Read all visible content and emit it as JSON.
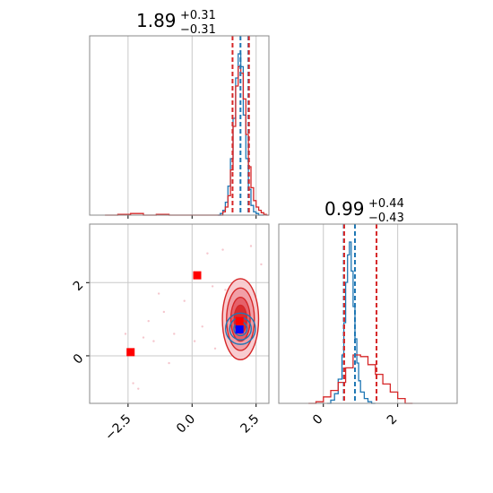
{
  "chart_data": [
    {
      "type": "histogram",
      "panel": "marginal-x",
      "title_value": "1.89",
      "title_plus": "+0.31",
      "title_minus": "−0.31",
      "xlim": [
        -4.0,
        3.0
      ],
      "grid": true,
      "series": [
        {
          "color": "#1f77b4",
          "style": "step",
          "bins_x": [
            1.0,
            1.1,
            1.2,
            1.3,
            1.4,
            1.5,
            1.6,
            1.7,
            1.8,
            1.9,
            2.0,
            2.1,
            2.2,
            2.3,
            2.4,
            2.5,
            2.6,
            2.7,
            2.8
          ],
          "heights": [
            0.0,
            0.01,
            0.03,
            0.08,
            0.18,
            0.35,
            0.6,
            0.85,
            1.0,
            0.92,
            0.62,
            0.35,
            0.16,
            0.06,
            0.02,
            0.01,
            0.0,
            0.0
          ]
        },
        {
          "color": "#d62728",
          "style": "step",
          "bins_x": [
            -3.4,
            -2.9,
            -2.4,
            -1.9,
            -1.4,
            -0.9,
            -0.4,
            0.1,
            0.6,
            1.1,
            1.2,
            1.3,
            1.4,
            1.5,
            1.6,
            1.7,
            1.8,
            1.9,
            2.0,
            2.1,
            2.2,
            2.3,
            2.4,
            2.5,
            2.6,
            2.7,
            2.8,
            2.9,
            3.0
          ],
          "heights": [
            0.0,
            0.005,
            0.01,
            0.0,
            0.005,
            0.0,
            0.0,
            0.0,
            0.0,
            0.0,
            0.02,
            0.05,
            0.12,
            0.28,
            0.55,
            0.8,
            0.92,
            0.88,
            0.72,
            0.5,
            0.3,
            0.17,
            0.09,
            0.05,
            0.03,
            0.015,
            0.005,
            0.0
          ]
        }
      ],
      "quantile_lines": [
        {
          "x": 1.58,
          "color": "#d62728"
        },
        {
          "x": 1.89,
          "color": "#1f77b4"
        },
        {
          "x": 2.2,
          "color": "#1f77b4"
        },
        {
          "x": 2.22,
          "color": "#d62728"
        }
      ]
    },
    {
      "type": "histogram",
      "panel": "marginal-y",
      "title_value": "0.99",
      "title_plus": "+0.44",
      "title_minus": "−0.43",
      "xlim": [
        -1.2,
        3.6
      ],
      "xticks": [
        0,
        2
      ],
      "xtick_labels": [
        "0",
        "2"
      ],
      "grid": true,
      "series": [
        {
          "color": "#1f77b4",
          "style": "step",
          "bins_x": [
            0.1,
            0.2,
            0.3,
            0.4,
            0.5,
            0.55,
            0.6,
            0.65,
            0.7,
            0.75,
            0.8,
            0.85,
            0.9,
            0.95,
            1.0,
            1.1,
            1.2,
            1.3,
            1.4
          ],
          "heights": [
            0.0,
            0.02,
            0.06,
            0.15,
            0.3,
            0.5,
            0.75,
            0.92,
            1.0,
            0.82,
            0.6,
            0.4,
            0.25,
            0.14,
            0.07,
            0.03,
            0.01,
            0.0
          ]
        },
        {
          "color": "#d62728",
          "style": "step",
          "bins_x": [
            -0.4,
            -0.2,
            0.0,
            0.2,
            0.4,
            0.6,
            0.8,
            1.0,
            1.2,
            1.4,
            1.6,
            1.8,
            2.0,
            2.2,
            2.4
          ],
          "heights": [
            0.0,
            0.01,
            0.04,
            0.08,
            0.13,
            0.22,
            0.3,
            0.29,
            0.24,
            0.18,
            0.12,
            0.07,
            0.03,
            0.0
          ]
        }
      ],
      "quantile_lines": [
        {
          "x": 0.55,
          "color": "#1f77b4"
        },
        {
          "x": 0.56,
          "color": "#d62728"
        },
        {
          "x": 0.85,
          "color": "#1f77b4"
        },
        {
          "x": 1.43,
          "color": "#d62728"
        }
      ]
    },
    {
      "type": "scatter",
      "panel": "joint",
      "xlim": [
        -4.0,
        3.0
      ],
      "ylim": [
        -1.3,
        3.6
      ],
      "xticks": [
        -2.5,
        0.0,
        2.5
      ],
      "xtick_labels": [
        "−2.5",
        "0.0",
        "2.5"
      ],
      "yticks": [
        0,
        2
      ],
      "ytick_labels": [
        "0",
        "2"
      ],
      "grid": true,
      "markers": [
        {
          "x": -2.4,
          "y": 0.1,
          "color": "#ff0000",
          "shape": "square"
        },
        {
          "x": 0.2,
          "y": 2.2,
          "color": "#ff0000",
          "shape": "square"
        },
        {
          "x": 1.85,
          "y": 0.95,
          "color": "#ff0000",
          "shape": "square"
        },
        {
          "x": 1.85,
          "y": 0.72,
          "color": "#0000ff",
          "shape": "square"
        }
      ],
      "red_contours": {
        "center": [
          1.89,
          1.0
        ],
        "sigma": [
          0.35,
          0.55
        ],
        "levels": [
          1.3,
          1.0,
          0.7,
          0.45
        ],
        "color": "#d62728"
      },
      "blue_contours": {
        "center": [
          1.89,
          0.74
        ],
        "sigma": [
          0.3,
          0.22
        ],
        "levels": [
          1.25,
          0.9,
          0.55
        ],
        "color": "#1f77b4"
      },
      "scatter_points": [
        [
          -2.3,
          -0.75
        ],
        [
          -2.1,
          -0.9
        ],
        [
          -1.9,
          0.5
        ],
        [
          -1.7,
          0.95
        ],
        [
          -1.5,
          0.4
        ],
        [
          -1.1,
          1.2
        ],
        [
          -0.7,
          0.6
        ],
        [
          -0.3,
          1.5
        ],
        [
          0.1,
          0.4
        ],
        [
          0.4,
          0.8
        ],
        [
          0.6,
          2.8
        ],
        [
          0.8,
          1.9
        ],
        [
          -2.6,
          0.6
        ],
        [
          -1.3,
          1.7
        ],
        [
          -0.9,
          -0.2
        ],
        [
          0.9,
          0.2
        ],
        [
          1.2,
          2.9
        ],
        [
          2.3,
          3.0
        ],
        [
          2.7,
          2.5
        ],
        [
          1.3,
          1.8
        ]
      ]
    }
  ]
}
